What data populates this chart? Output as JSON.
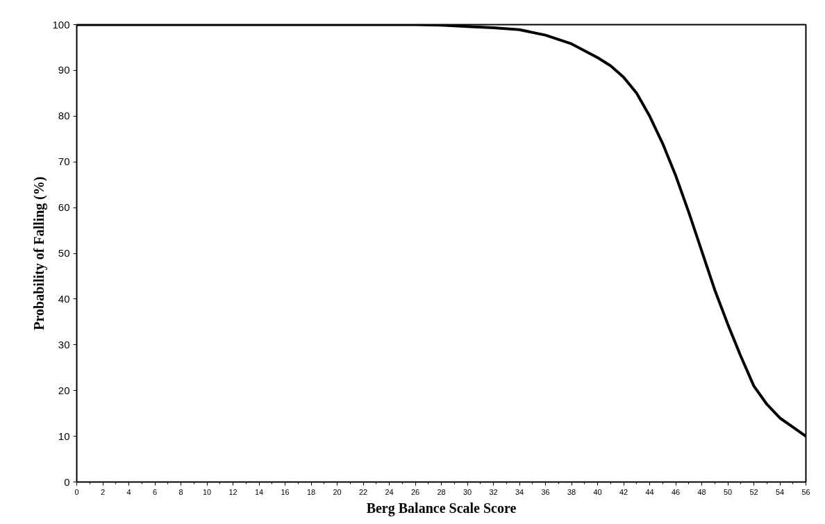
{
  "chart_data": {
    "type": "line",
    "xlabel": "Berg Balance Scale Score",
    "ylabel": "Probability of Falling (%)",
    "x": [
      0,
      2,
      4,
      6,
      8,
      10,
      12,
      14,
      16,
      18,
      20,
      22,
      24,
      26,
      28,
      30,
      32,
      34,
      36,
      38,
      40,
      41,
      42,
      43,
      44,
      45,
      46,
      47,
      48,
      49,
      50,
      51,
      52,
      53,
      54,
      55,
      56
    ],
    "series": [
      {
        "color": "#000000",
        "values": [
          100,
          100,
          100,
          100,
          100,
          100,
          100,
          100,
          100,
          100,
          100,
          100,
          100,
          100,
          99.9,
          99.6,
          99.3,
          98.9,
          97.7,
          95.8,
          92.8,
          91,
          88.5,
          85,
          80,
          74,
          67,
          59,
          50.5,
          42,
          34.5,
          27.5,
          21,
          17,
          14,
          12,
          10
        ]
      }
    ],
    "xlim": [
      0,
      56
    ],
    "xticks": [
      0,
      2,
      4,
      6,
      8,
      10,
      12,
      14,
      16,
      18,
      20,
      22,
      24,
      26,
      28,
      30,
      32,
      34,
      36,
      38,
      40,
      42,
      44,
      46,
      48,
      50,
      52,
      54,
      56
    ],
    "ylim": [
      0,
      100
    ],
    "yticks": [
      0,
      10,
      20,
      30,
      40,
      50,
      60,
      70,
      80,
      90,
      100
    ],
    "grid": false,
    "marker": "none",
    "line_style": "solid"
  }
}
